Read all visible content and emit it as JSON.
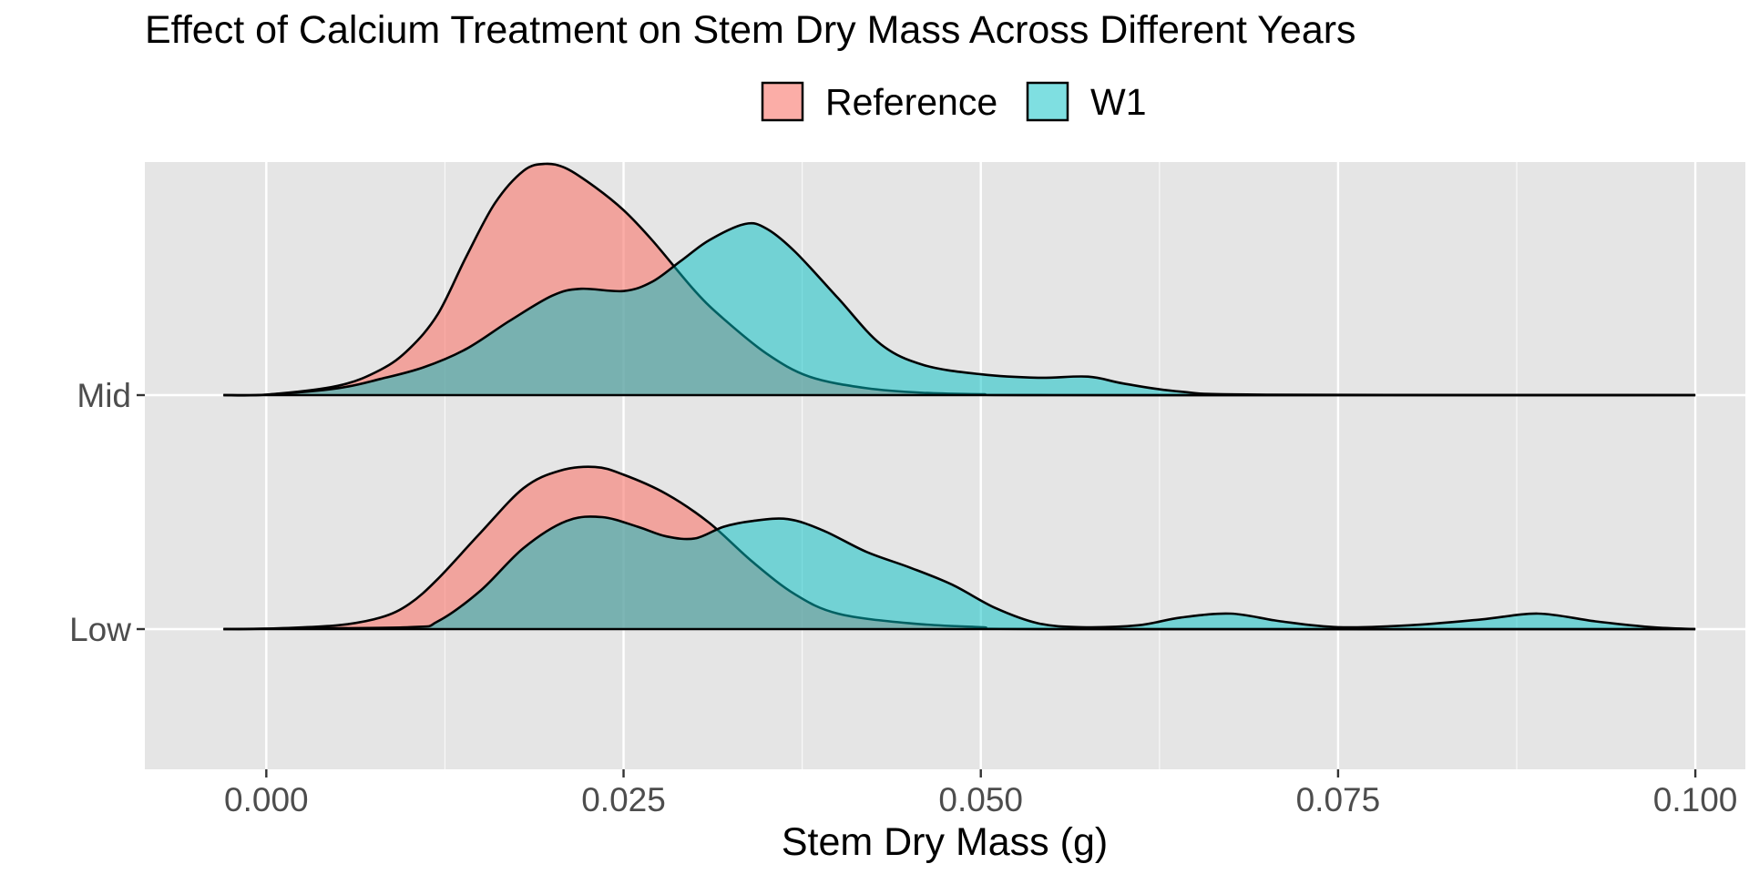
{
  "chart_data": {
    "type": "ridgeline",
    "title": "Effect of Calcium Treatment on Stem Dry Mass Across Different Years",
    "xlabel": "Stem Dry Mass (g)",
    "ylabel": "",
    "xlim": [
      -0.0085,
      0.1035
    ],
    "x_ticks": [
      0.0,
      0.025,
      0.05,
      0.075,
      0.1
    ],
    "x_tick_labels": [
      "0.000",
      "0.025",
      "0.050",
      "0.075",
      "0.100"
    ],
    "categories": [
      "Mid",
      "Low"
    ],
    "legend": {
      "position": "top",
      "entries": [
        "Reference",
        "W1"
      ]
    },
    "grid": true,
    "colors": {
      "Reference": "#F8766D",
      "W1": "#00BFC4",
      "panel": "#E5E5E5",
      "grid": "#FFFFFF"
    },
    "ridges": [
      {
        "category": "Mid",
        "series": [
          {
            "name": "Reference",
            "x": [
              -0.003,
              0.0,
              0.005,
              0.008,
              0.01,
              0.012,
              0.014,
              0.016,
              0.018,
              0.0195,
              0.021,
              0.023,
              0.025,
              0.027,
              0.03,
              0.032,
              0.035,
              0.038,
              0.042,
              0.046,
              0.05,
              0.055,
              0.1
            ],
            "density": [
              0.0,
              0.002,
              0.04,
              0.11,
              0.2,
              0.35,
              0.6,
              0.83,
              0.97,
              1.0,
              0.98,
              0.9,
              0.8,
              0.67,
              0.45,
              0.33,
              0.18,
              0.08,
              0.03,
              0.01,
              0.004,
              0.0,
              0.0
            ]
          },
          {
            "name": "W1",
            "x": [
              -0.003,
              0.0,
              0.005,
              0.008,
              0.011,
              0.014,
              0.017,
              0.02,
              0.022,
              0.025,
              0.027,
              0.029,
              0.031,
              0.0335,
              0.035,
              0.037,
              0.04,
              0.043,
              0.046,
              0.05,
              0.054,
              0.0575,
              0.06,
              0.064,
              0.07,
              0.1
            ],
            "density": [
              0.0,
              0.002,
              0.03,
              0.07,
              0.12,
              0.2,
              0.32,
              0.43,
              0.46,
              0.45,
              0.49,
              0.58,
              0.67,
              0.74,
              0.72,
              0.62,
              0.42,
              0.22,
              0.13,
              0.09,
              0.075,
              0.08,
              0.05,
              0.015,
              0.002,
              0.0
            ]
          }
        ]
      },
      {
        "category": "Low",
        "series": [
          {
            "name": "Reference",
            "x": [
              -0.003,
              0.0,
              0.005,
              0.008,
              0.01,
              0.012,
              0.015,
              0.018,
              0.0205,
              0.023,
              0.025,
              0.028,
              0.031,
              0.034,
              0.037,
              0.04,
              0.045,
              0.05,
              0.055,
              0.1
            ],
            "density": [
              0.0,
              0.002,
              0.02,
              0.06,
              0.13,
              0.26,
              0.5,
              0.73,
              0.82,
              0.84,
              0.8,
              0.7,
              0.55,
              0.35,
              0.18,
              0.08,
              0.03,
              0.01,
              0.0,
              0.0
            ]
          },
          {
            "name": "W1",
            "x": [
              -0.003,
              0.0,
              0.01,
              0.012,
              0.015,
              0.018,
              0.021,
              0.0235,
              0.026,
              0.028,
              0.03,
              0.032,
              0.034,
              0.0365,
              0.039,
              0.042,
              0.045,
              0.048,
              0.051,
              0.054,
              0.057,
              0.061,
              0.064,
              0.0675,
              0.071,
              0.075,
              0.08,
              0.085,
              0.089,
              0.093,
              0.097,
              0.1
            ],
            "density": [
              0.0,
              0.002,
              0.01,
              0.04,
              0.2,
              0.42,
              0.56,
              0.58,
              0.53,
              0.48,
              0.47,
              0.53,
              0.56,
              0.57,
              0.51,
              0.4,
              0.32,
              0.23,
              0.11,
              0.03,
              0.01,
              0.02,
              0.06,
              0.08,
              0.04,
              0.01,
              0.02,
              0.05,
              0.08,
              0.04,
              0.01,
              0.0
            ]
          }
        ]
      }
    ]
  }
}
